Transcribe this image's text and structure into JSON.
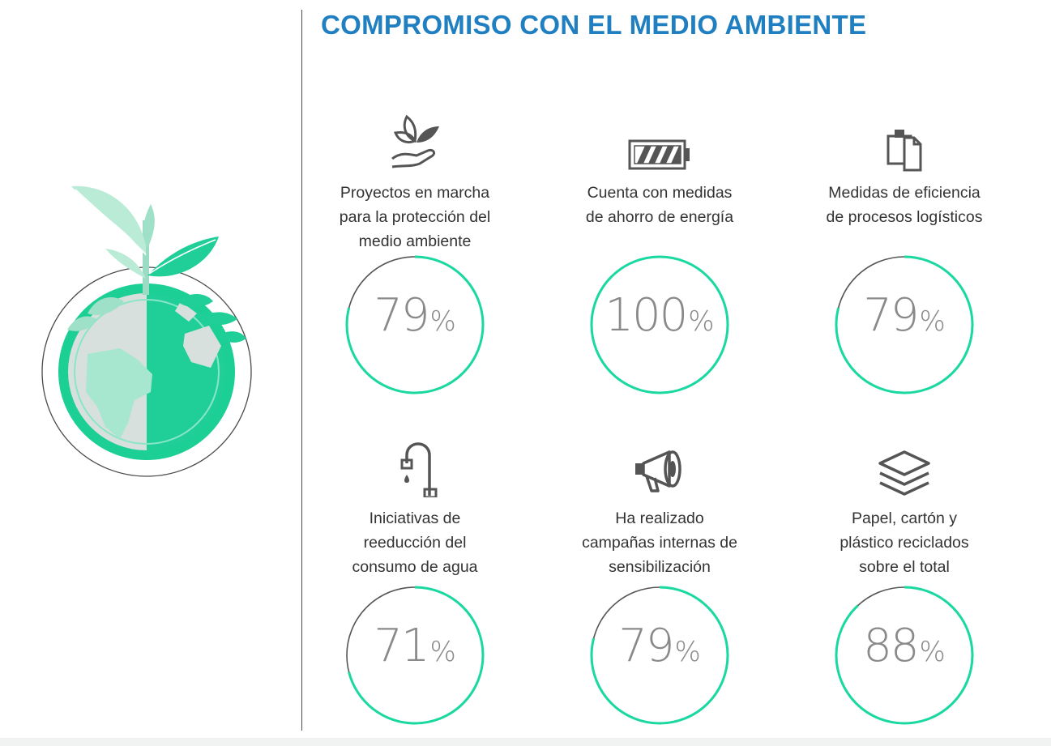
{
  "title": "COMPROMISO CON EL MEDIO AMBIENTE",
  "colors": {
    "title": "#1f7fc0",
    "ring_fill": "#19d8a0",
    "ring_track": "#555555",
    "icon": "#555555"
  },
  "chart_data": {
    "type": "donut",
    "title": "COMPROMISO CON EL MEDIO AMBIENTE",
    "unit": "%",
    "ylim": [
      0,
      100
    ],
    "items": [
      {
        "label_lines": [
          "Proyectos en marcha",
          "para la protección del",
          "medio ambiente"
        ],
        "value": 79,
        "icon": "plant-in-hand-icon"
      },
      {
        "label_lines": [
          "Cuenta con medidas",
          "de ahorro de energía"
        ],
        "value": 100,
        "icon": "battery-icon"
      },
      {
        "label_lines": [
          "Medidas de eficiencia",
          "de procesos logísticos"
        ],
        "value": 79,
        "icon": "clipboard-copy-icon"
      },
      {
        "label_lines": [
          "Iniciativas de",
          "reeducción del",
          "consumo de agua"
        ],
        "value": 71,
        "icon": "water-tap-icon"
      },
      {
        "label_lines": [
          "Ha realizado",
          "campañas internas de",
          "sensibilización"
        ],
        "value": 79,
        "icon": "megaphone-icon"
      },
      {
        "label_lines": [
          "Papel, cartón y",
          "plástico reciclados",
          "sobre el total"
        ],
        "value": 88,
        "icon": "stacked-layers-icon"
      }
    ]
  }
}
